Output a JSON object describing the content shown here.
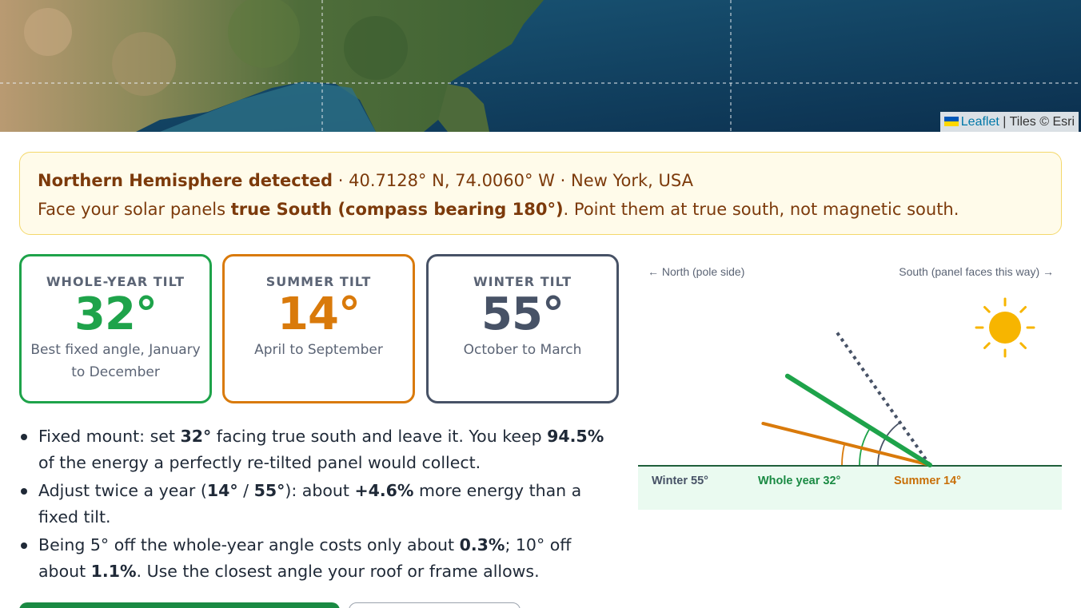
{
  "map": {
    "attribution_link": "Leaflet",
    "attribution_sep": " | ",
    "attribution_tiles": "Tiles © Esri"
  },
  "alert": {
    "hemisphere": "Northern Hemisphere detected",
    "location_sep": " · ",
    "coordinates": "40.7128° N, 74.0060° W",
    "place": "New York, USA",
    "instruction_prefix": "Face your solar panels ",
    "instruction_bold": "true South (compass bearing 180°)",
    "instruction_suffix": ". Point them at true south, not magnetic south."
  },
  "cards": {
    "year": {
      "label": "WHOLE-YEAR TILT",
      "value": "32°",
      "desc": "Best fixed angle, January to December",
      "color": "#1ea34a"
    },
    "summer": {
      "label": "SUMMER TILT",
      "value": "14°",
      "desc": "April to September",
      "color": "#d97a0b"
    },
    "winter": {
      "label": "WINTER TILT",
      "value": "55°",
      "desc": "October to March",
      "color": "#475266"
    }
  },
  "tips": {
    "t1": {
      "a": "Fixed mount: set ",
      "b1": "32°",
      "c": " facing true south and leave it. You keep ",
      "b2": "94.5%",
      "d": " of the energy a perfectly re-tilted panel would collect."
    },
    "t2": {
      "a": "Adjust twice a year (",
      "b1": "14°",
      "c": " / ",
      "b2": "55°",
      "d": "): about ",
      "b3": "+4.6%",
      "e": " more energy than a fixed tilt."
    },
    "t3": {
      "a": "Being 5° off the whole-year angle costs only about ",
      "b1": "0.3%",
      "c": "; 10° off about ",
      "b2": "1.1%",
      "d": ". Use the closest angle your roof or frame allows."
    }
  },
  "diagram": {
    "north_label": "← North (pole side)",
    "south_label": "South (panel faces this way) →",
    "winter_label": "Winter 55°",
    "year_label": "Whole year 32°",
    "summer_label": "Summer 14°",
    "tilts": {
      "winter": 55,
      "year": 32,
      "summer": 14
    },
    "sun_icon": "sun-icon",
    "colors": {
      "winter": "#475266",
      "year": "#1ea34a",
      "summer": "#d97a0b",
      "sun": "#f7b500"
    }
  }
}
